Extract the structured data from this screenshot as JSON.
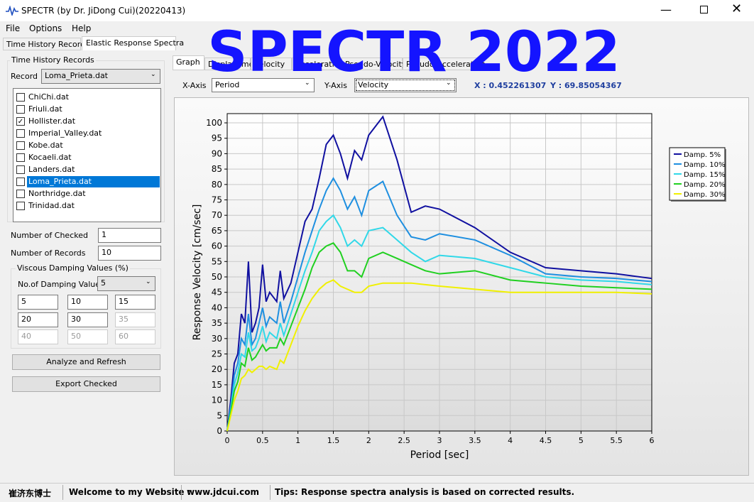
{
  "window": {
    "title": "SPECTR (by Dr. JiDong Cui)(20220413)"
  },
  "menu": [
    "File",
    "Options",
    "Help"
  ],
  "overlay": "SPECTR 2022",
  "main_tabs": [
    "Time History Records",
    "Elastic Response Spectra"
  ],
  "left_panel": {
    "group_title": "Time History Records",
    "record_label": "Record",
    "record_value": "Loma_Prieta.dat",
    "files": [
      {
        "name": "ChiChi.dat",
        "checked": false
      },
      {
        "name": "Friuli.dat",
        "checked": false
      },
      {
        "name": "Hollister.dat",
        "checked": true
      },
      {
        "name": "Imperial_Valley.dat",
        "checked": false
      },
      {
        "name": "Kobe.dat",
        "checked": false
      },
      {
        "name": "Kocaeli.dat",
        "checked": false
      },
      {
        "name": "Landers.dat",
        "checked": false
      },
      {
        "name": "Loma_Prieta.dat",
        "checked": false,
        "selected": true
      },
      {
        "name": "Northridge.dat",
        "checked": false
      },
      {
        "name": "Trinidad.dat",
        "checked": false
      }
    ],
    "checked_label": "Number of Checked",
    "checked_value": "1",
    "records_label": "Number of Records",
    "records_value": "10",
    "damping_group": "Viscous Damping Values (%)",
    "damping_count_label": "No.of Damping Values",
    "damping_count": "5",
    "damping_values": [
      "5",
      "10",
      "15",
      "20",
      "30",
      "35",
      "40",
      "50",
      "60"
    ],
    "buttons": [
      "Analyze and Refresh",
      "Export Checked"
    ]
  },
  "graph_tabs": [
    "Graph",
    "Displacement",
    "Velocity",
    "Acceleration",
    "Pseudo-Velocity",
    "Pseudo-Acceleration"
  ],
  "x_axis_label": "X-Axis",
  "x_axis_value": "Period",
  "y_axis_label": "Y-Axis",
  "y_axis_value": "Velocity",
  "cursor_x": "X : 0.452261307",
  "cursor_y": "Y : 69.85054367",
  "chart_data": {
    "type": "line",
    "x_label": "Period [sec]",
    "y_label": "Response Velocity [cm/sec]",
    "x": [
      0,
      0.05,
      0.1,
      0.15,
      0.2,
      0.25,
      0.3,
      0.35,
      0.4,
      0.45,
      0.5,
      0.55,
      0.6,
      0.7,
      0.75,
      0.8,
      0.9,
      1.0,
      1.1,
      1.2,
      1.3,
      1.4,
      1.5,
      1.6,
      1.7,
      1.8,
      1.9,
      2.0,
      2.2,
      2.4,
      2.6,
      2.8,
      3.0,
      3.5,
      4.0,
      4.5,
      5.0,
      5.5,
      6.0
    ],
    "series": [
      {
        "name": "Damp. 5%",
        "color": "#1010a0",
        "values": [
          0,
          10,
          22,
          25,
          38,
          35,
          55,
          32,
          35,
          40,
          54,
          42,
          45,
          42,
          52,
          43,
          48,
          58,
          68,
          72,
          82,
          93,
          96,
          90,
          82,
          91,
          88,
          96,
          102,
          88,
          71,
          73,
          72,
          66,
          58,
          53,
          52,
          51,
          49.5
        ]
      },
      {
        "name": "Damp. 10%",
        "color": "#1e8fe0",
        "values": [
          0,
          8,
          18,
          22,
          30,
          28,
          38,
          28,
          30,
          35,
          40,
          34,
          37,
          35,
          42,
          35,
          42,
          50,
          58,
          65,
          72,
          78,
          82,
          78,
          72,
          76,
          70,
          78,
          81,
          70,
          63,
          62,
          64,
          62,
          57,
          51,
          50,
          49.5,
          48.5
        ]
      },
      {
        "name": "Damp. 15%",
        "color": "#30d8e8",
        "values": [
          0,
          7,
          15,
          19,
          25,
          24,
          32,
          26,
          27,
          30,
          34,
          29,
          32,
          30,
          35,
          31,
          38,
          45,
          52,
          58,
          65,
          68,
          70,
          66,
          60,
          62,
          60,
          65,
          66,
          62,
          58,
          55,
          57,
          56,
          53,
          50,
          49,
          48.5,
          47.5
        ]
      },
      {
        "name": "Damp. 20%",
        "color": "#20d020",
        "values": [
          0,
          6,
          13,
          16,
          22,
          21,
          27,
          23,
          24,
          26,
          28,
          26,
          27,
          27,
          30,
          28,
          34,
          40,
          46,
          53,
          58,
          60,
          61,
          58,
          52,
          52,
          50,
          56,
          58,
          56,
          54,
          52,
          51,
          52,
          49,
          48,
          47,
          46.5,
          46
        ]
      },
      {
        "name": "Damp. 30%",
        "color": "#f0f000",
        "values": [
          0,
          5,
          10,
          13,
          17,
          18,
          20,
          19,
          20,
          21,
          21,
          20,
          21,
          20,
          23,
          22,
          28,
          34,
          39,
          43,
          46,
          48,
          49,
          47,
          46,
          45,
          45,
          47,
          48,
          48,
          48,
          47.5,
          47,
          46,
          45,
          45,
          45,
          45,
          44.5
        ]
      }
    ],
    "xlim": [
      0,
      6
    ],
    "ylim": [
      0,
      103
    ],
    "xticks": [
      0,
      0.5,
      1,
      1.5,
      2,
      2.5,
      3,
      3.5,
      4,
      4.5,
      5,
      5.5,
      6
    ],
    "yticks": [
      0,
      5,
      10,
      15,
      20,
      25,
      30,
      35,
      40,
      45,
      50,
      55,
      60,
      65,
      70,
      75,
      80,
      85,
      90,
      95,
      100
    ],
    "grid": true,
    "legend": "right"
  },
  "status_bar": [
    "崔济东博士",
    "Welcome to my Website :",
    "www.jdcui.com",
    "Tips: Response spectra analysis is based on corrected results."
  ]
}
